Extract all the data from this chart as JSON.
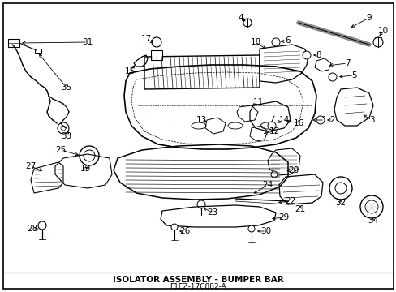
{
  "title": "ISOLATOR ASSEMBLY - BUMPER BAR",
  "subtitle": "F1EZ-17C882-A",
  "bg": "#ffffff",
  "lc": "#000000",
  "fig_w": 4.89,
  "fig_h": 3.6,
  "dpi": 100
}
